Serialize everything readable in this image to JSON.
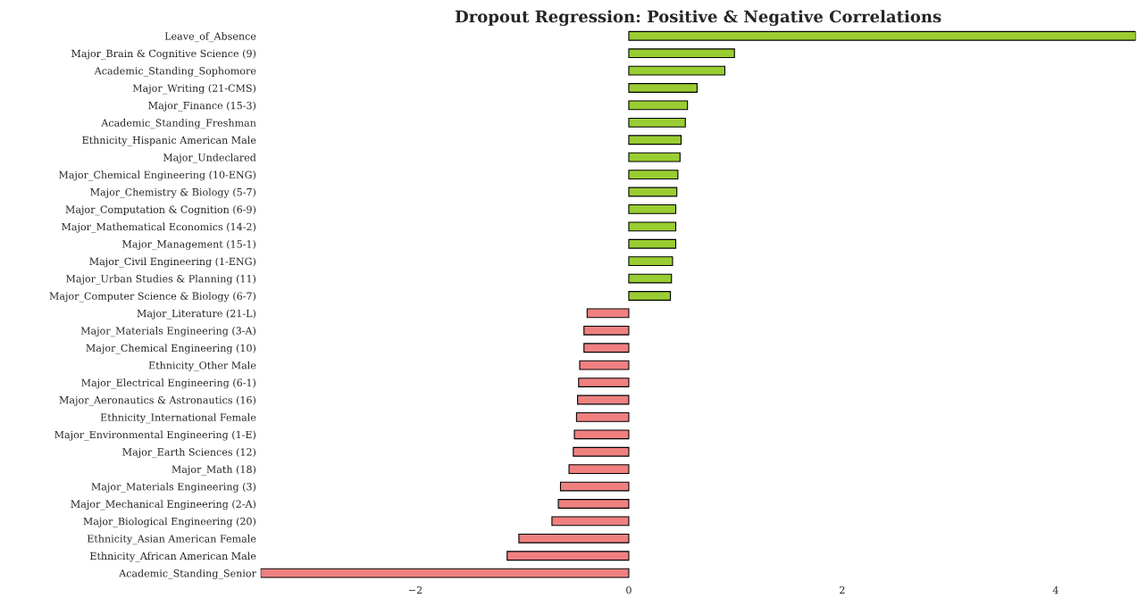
{
  "chart_data": {
    "type": "bar",
    "orientation": "horizontal",
    "title": "Dropout Regression: Positive & Negative Correlations",
    "categories": [
      "Leave_of_Absence",
      "Major_Brain & Cognitive Science (9)",
      "Academic_Standing_Sophomore",
      "Major_Writing (21-CMS)",
      "Major_Finance (15-3)",
      "Academic_Standing_Freshman",
      "Ethnicity_Hispanic American Male",
      "Major_Undeclared",
      "Major_Chemical Engineering (10-ENG)",
      "Major_Chemistry & Biology (5-7)",
      "Major_Computation & Cognition (6-9)",
      "Major_Mathematical Economics (14-2)",
      "Major_Management (15-1)",
      "Major_Civil Engineering (1-ENG)",
      "Major_Urban Studies & Planning (11)",
      "Major_Computer Science & Biology (6-7)",
      "Major_Literature (21-L)",
      "Major_Materials Engineering (3-A)",
      "Major_Chemical Engineering (10)",
      "Ethnicity_Other Male",
      "Major_Electrical Engineering (6-1)",
      "Major_Aeronautics & Astronautics (16)",
      "Ethnicity_International Female",
      "Major_Environmental Engineering (1-E)",
      "Major_Earth Sciences (12)",
      "Major_Math (18)",
      "Major_Materials Engineering (3)",
      "Major_Mechanical Engineering (2-A)",
      "Major_Biological Engineering (20)",
      "Ethnicity_Asian American Female",
      "Ethnicity_African American Male",
      "Academic_Standing_Senior"
    ],
    "values": [
      4.75,
      0.99,
      0.9,
      0.64,
      0.55,
      0.53,
      0.49,
      0.48,
      0.46,
      0.45,
      0.44,
      0.44,
      0.44,
      0.41,
      0.4,
      0.39,
      -0.39,
      -0.42,
      -0.42,
      -0.46,
      -0.47,
      -0.48,
      -0.49,
      -0.51,
      -0.52,
      -0.56,
      -0.64,
      -0.66,
      -0.72,
      -1.03,
      -1.14,
      -3.45
    ],
    "colors": [
      "#9acd32",
      "#9acd32",
      "#9acd32",
      "#9acd32",
      "#9acd32",
      "#9acd32",
      "#9acd32",
      "#9acd32",
      "#9acd32",
      "#9acd32",
      "#9acd32",
      "#9acd32",
      "#9acd32",
      "#9acd32",
      "#9acd32",
      "#9acd32",
      "#f08080",
      "#f08080",
      "#f08080",
      "#f08080",
      "#f08080",
      "#f08080",
      "#f08080",
      "#f08080",
      "#f08080",
      "#f08080",
      "#f08080",
      "#f08080",
      "#f08080",
      "#f08080",
      "#f08080",
      "#f08080"
    ],
    "xlim": [
      -3.45,
      4.75
    ],
    "xticks": [
      {
        "value": -2,
        "label": "−2"
      },
      0,
      2,
      4
    ],
    "grid": false,
    "legend": false
  }
}
